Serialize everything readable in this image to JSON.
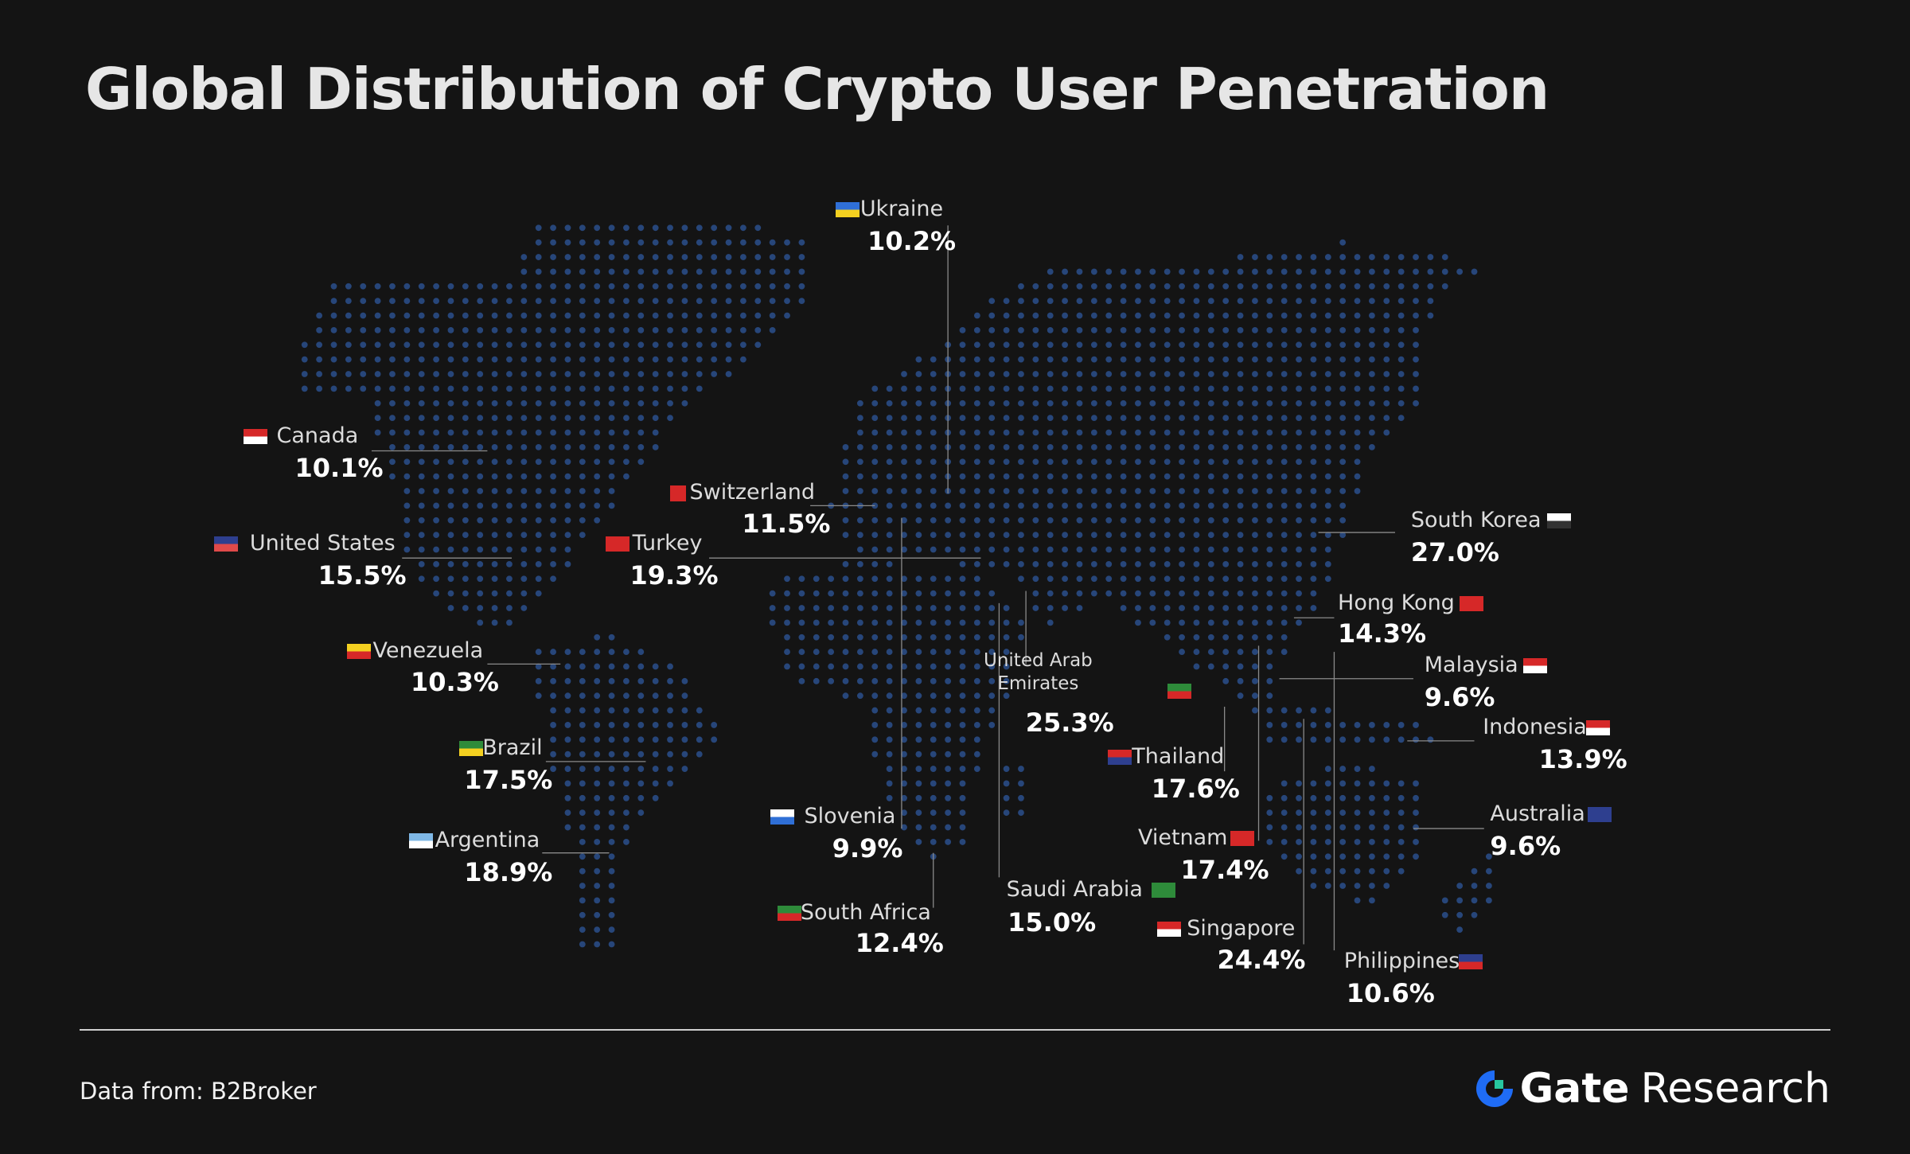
{
  "header": {
    "title": "Global Distribution of Crypto User Penetration"
  },
  "countries": [
    {
      "name": "Ukraine",
      "value": "10.2%"
    },
    {
      "name": "Canada",
      "value": "10.1%"
    },
    {
      "name": "Switzerland",
      "value": "11.5%"
    },
    {
      "name": "United States",
      "value": "15.5%"
    },
    {
      "name": "Turkey",
      "value": "19.3%"
    },
    {
      "name": "South Korea",
      "value": "27.0%"
    },
    {
      "name": "Hong Kong",
      "value": "14.3%"
    },
    {
      "name": "Venezuela",
      "value": "10.3%"
    },
    {
      "name": "United Arab Emirates",
      "value": "25.3%"
    },
    {
      "name": "Malaysia",
      "value": "9.6%"
    },
    {
      "name": "Indonesia",
      "value": "13.9%"
    },
    {
      "name": "Brazil",
      "value": "17.5%"
    },
    {
      "name": "Thailand",
      "value": "17.6%"
    },
    {
      "name": "Slovenia",
      "value": "9.9%"
    },
    {
      "name": "Australia",
      "value": "9.6%"
    },
    {
      "name": "Argentina",
      "value": "18.9%"
    },
    {
      "name": "Vietnam",
      "value": "17.4%"
    },
    {
      "name": "Saudi Arabia",
      "value": "15.0%"
    },
    {
      "name": "South Africa",
      "value": "12.4%"
    },
    {
      "name": "Singapore",
      "value": "24.4%"
    },
    {
      "name": "Philippines",
      "value": "10.6%"
    }
  ],
  "footer": {
    "source": "Data from:  B2Broker",
    "brand": "Gate",
    "brand_suffix": "Research"
  }
}
